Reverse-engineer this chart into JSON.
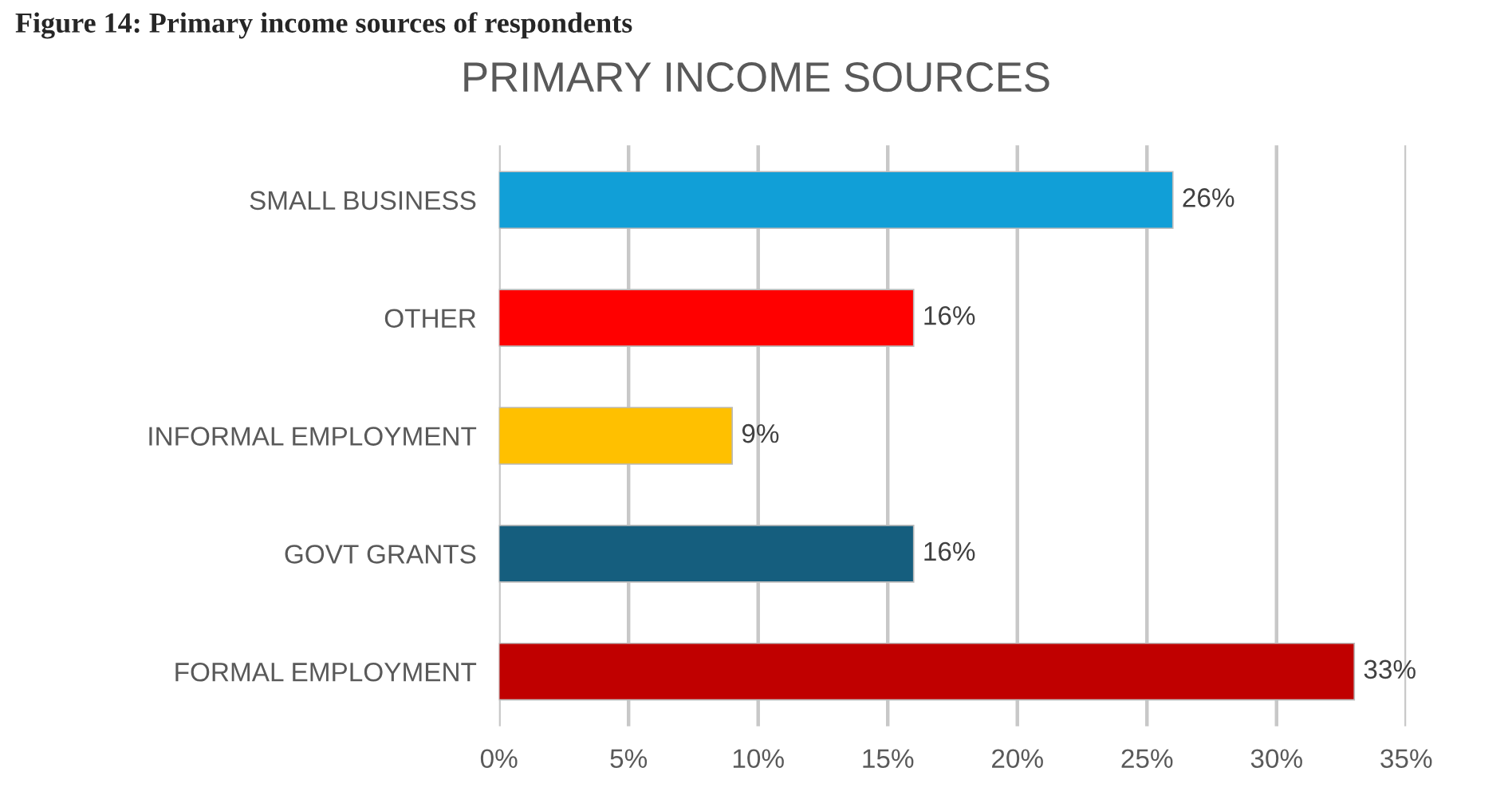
{
  "chart_data": {
    "type": "bar",
    "orientation": "horizontal",
    "title": "PRIMARY INCOME SOURCES",
    "annotations": [
      "Figure 14: Primary income sources of respondents"
    ],
    "categories": [
      "SMALL BUSINESS",
      "OTHER",
      "INFORMAL EMPLOYMENT",
      "GOVT GRANTS",
      "FORMAL EMPLOYMENT"
    ],
    "values": [
      26,
      16,
      9,
      16,
      33
    ],
    "colors": [
      "#119fd7",
      "#ff0000",
      "#ffc000",
      "#155e7e",
      "#c00000"
    ],
    "value_labels": [
      "26%",
      "16%",
      "9%",
      "16%",
      "33%"
    ],
    "xlim": [
      0,
      35
    ],
    "xticks": [
      {
        "value": 0,
        "label": "0%"
      },
      {
        "value": 5,
        "label": "5%"
      },
      {
        "value": 10,
        "label": "10%"
      },
      {
        "value": 15,
        "label": "15%"
      },
      {
        "value": 20,
        "label": "20%"
      },
      {
        "value": 25,
        "label": "25%"
      },
      {
        "value": 30,
        "label": "30%"
      },
      {
        "value": 35,
        "label": "35%"
      }
    ],
    "grid": "x",
    "legend": false
  }
}
